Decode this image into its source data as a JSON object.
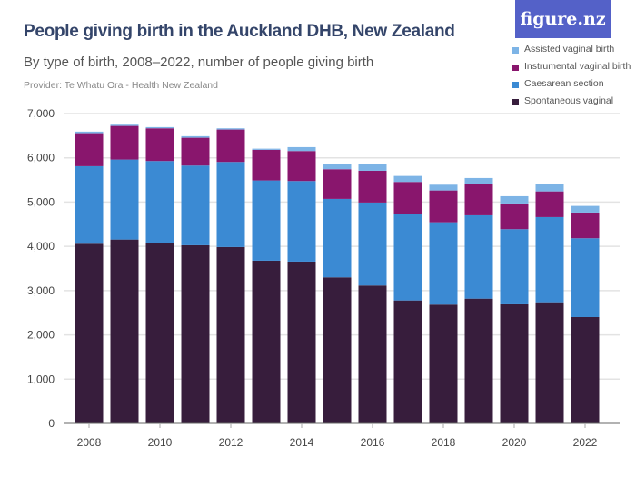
{
  "header": {
    "title": "People giving birth in the Auckland DHB, New Zealand",
    "subtitle": "By type of birth, 2008–2022, number of people giving birth",
    "provider": "Provider: Te Whatu Ora - Health New Zealand",
    "logo": "figure.nz"
  },
  "chart_data": {
    "type": "bar",
    "stacked": true,
    "title": "People giving birth in the Auckland DHB, New Zealand",
    "subtitle": "By type of birth, 2008–2022, number of people giving birth",
    "xlabel": "",
    "ylabel": "",
    "ylim": [
      0,
      7000
    ],
    "yticks": [
      "0",
      "1,000",
      "2,000",
      "3,000",
      "4,000",
      "5,000",
      "6,000",
      "7,000"
    ],
    "ytick_values": [
      0,
      1000,
      2000,
      3000,
      4000,
      5000,
      6000,
      7000
    ],
    "xtick_labels": [
      "2008",
      "2010",
      "2012",
      "2014",
      "2016",
      "2018",
      "2020",
      "2022"
    ],
    "grid": true,
    "legend_position": "top-right",
    "categories": [
      "2008",
      "2009",
      "2010",
      "2011",
      "2012",
      "2013",
      "2014",
      "2015",
      "2016",
      "2017",
      "2018",
      "2019",
      "2020",
      "2021",
      "2022"
    ],
    "series": [
      {
        "name": "Spontaneous vaginal",
        "color": "#371d3c",
        "values": [
          4059,
          4154,
          4080,
          4025,
          3984,
          3676,
          3655,
          3300,
          3115,
          2778,
          2684,
          2819,
          2690,
          2737,
          2402
        ]
      },
      {
        "name": "Caesarean section",
        "color": "#3b8ad3",
        "values": [
          1752,
          1807,
          1848,
          1800,
          1923,
          1813,
          1821,
          1772,
          1875,
          1945,
          1860,
          1883,
          1698,
          1924,
          1781
        ]
      },
      {
        "name": "Instrumental vaginal birth",
        "color": "#89166d",
        "values": [
          746,
          760,
          739,
          629,
          732,
          692,
          678,
          671,
          718,
          733,
          719,
          698,
          581,
          581,
          581
        ]
      },
      {
        "name": "Assisted vaginal birth",
        "color": "#7db4e6",
        "values": [
          35,
          28,
          27,
          35,
          28,
          26,
          88,
          115,
          150,
          135,
          130,
          144,
          164,
          172,
          150
        ]
      }
    ]
  }
}
